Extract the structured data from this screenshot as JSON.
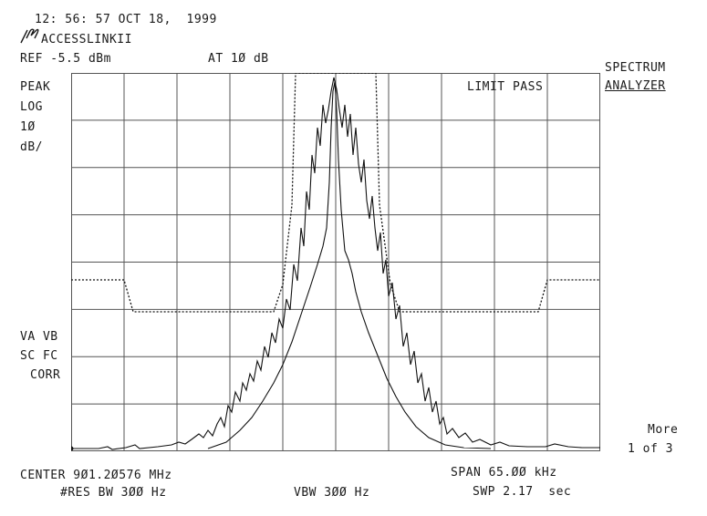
{
  "header": {
    "timestamp": "12: 56: 57 OCT 18,  1999",
    "device": "ACCESSLINKII",
    "ref_level": "REF -5.5 dBm",
    "attenuation": "AT 1Ø dB",
    "status": "LIMIT PASS",
    "mode_line1": "SPECTRUM",
    "mode_line2": "ANALYZER"
  },
  "left_annotations": {
    "detector": "PEAK",
    "scale_type": "LOG",
    "scale_value": "1Ø",
    "scale_unit": "dB/",
    "flags_line1": "VA VB",
    "flags_line2": "SC FC",
    "flags_line3": "CORR"
  },
  "softkey": {
    "label": "More",
    "page": "1 of 3"
  },
  "footer": {
    "center": "CENTER 9Ø1.2Ø576 MHz",
    "span": "SPAN 65.ØØ kHz",
    "res_bw": "#RES BW 3ØØ Hz",
    "vbw": "VBW 3ØØ Hz",
    "sweep": "SWP 2.17  sec"
  },
  "colors": {
    "trace": "#111111",
    "grid": "#555555",
    "text": "#1a1a1a"
  },
  "icons": {
    "logo": "hp-logo-icon"
  }
}
